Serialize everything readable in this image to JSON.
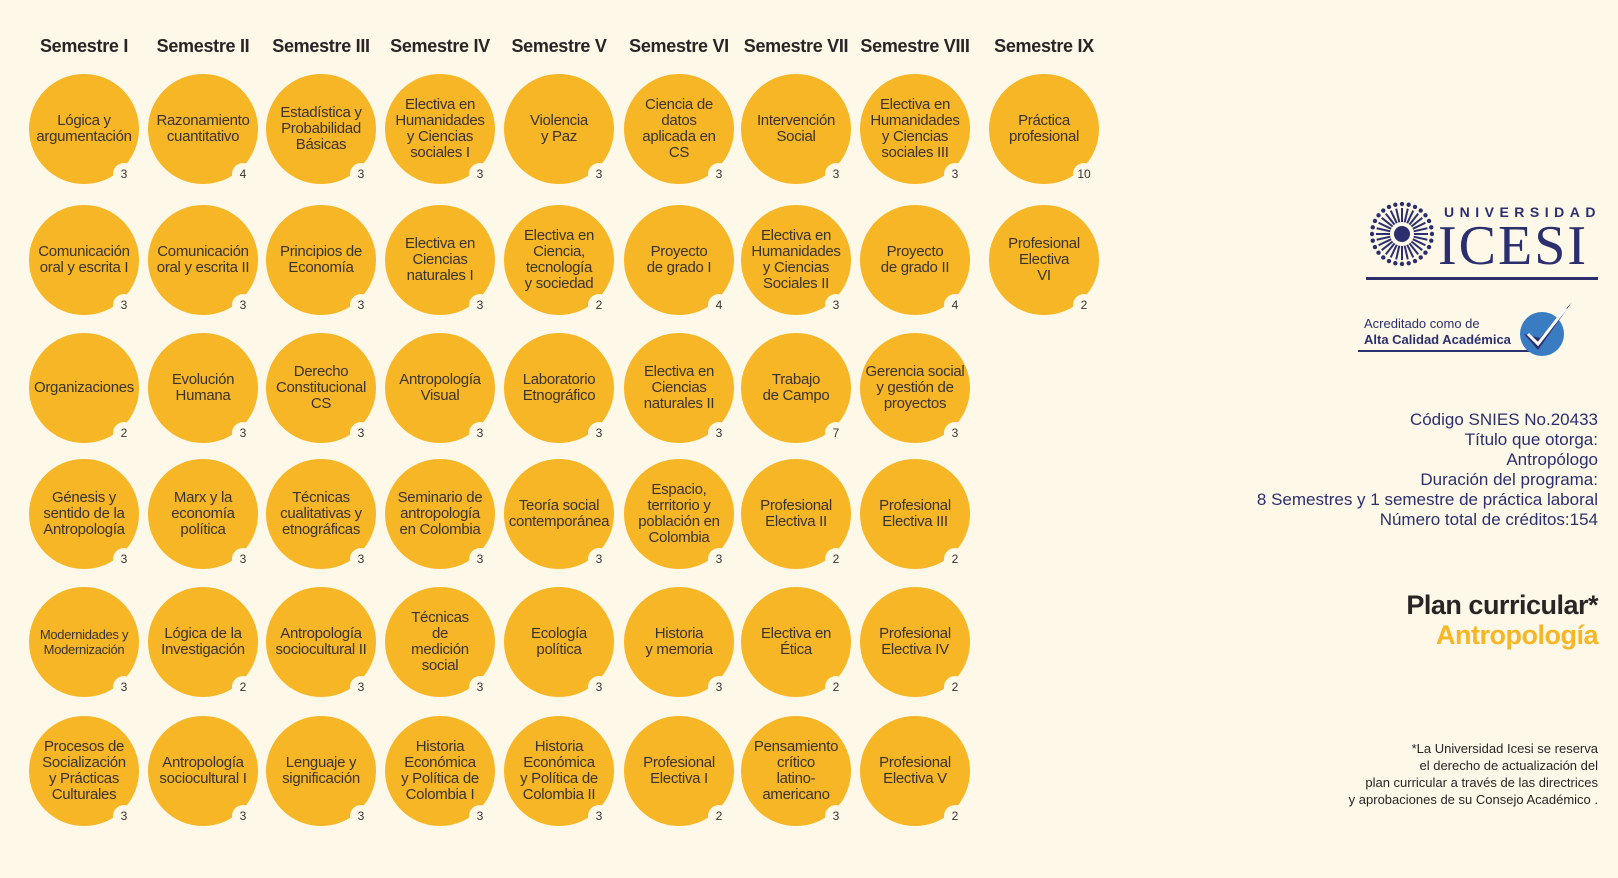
{
  "semesters": [
    {
      "label": "Semestre I",
      "courses": [
        {
          "name": "Lógica y\nargumentación",
          "credits": "3"
        },
        {
          "name": "Comunicación\noral y escrita I",
          "credits": "3"
        },
        {
          "name": "Organizaciones",
          "credits": "2"
        },
        {
          "name": "Génesis y\nsentido de la\nAntropología",
          "credits": "3"
        },
        {
          "name": "Modernidades y\nModernización",
          "credits": "3",
          "small": true
        },
        {
          "name": "Procesos de\nSocialización\ny Prácticas\nCulturales",
          "credits": "3"
        }
      ]
    },
    {
      "label": "Semestre II",
      "courses": [
        {
          "name": "Razonamiento\ncuantitativo",
          "credits": "4"
        },
        {
          "name": "Comunicación\noral y escrita II",
          "credits": "3"
        },
        {
          "name": "Evolución\nHumana",
          "credits": "3"
        },
        {
          "name": "Marx y la\neconomía\npolítica",
          "credits": "3"
        },
        {
          "name": "Lógica de la\nInvestigación",
          "credits": "2"
        },
        {
          "name": "Antropología\nsociocultural I",
          "credits": "3"
        }
      ]
    },
    {
      "label": "Semestre III",
      "courses": [
        {
          "name": "Estadística y\nProbabilidad\nBásicas",
          "credits": "3"
        },
        {
          "name": "Principios de\nEconomía",
          "credits": "3"
        },
        {
          "name": "Derecho\nConstitucional\nCS",
          "credits": "3"
        },
        {
          "name": "Técnicas\ncualitativas y\netnográficas",
          "credits": "3"
        },
        {
          "name": "Antropología\nsociocultural II",
          "credits": "3"
        },
        {
          "name": "Lenguaje y\nsignificación",
          "credits": "3"
        }
      ]
    },
    {
      "label": "Semestre IV",
      "courses": [
        {
          "name": "Electiva en\nHumanidades\ny Ciencias\nsociales I",
          "credits": "3"
        },
        {
          "name": "Electiva en\nCiencias\nnaturales I",
          "credits": "3"
        },
        {
          "name": "Antropología\nVisual",
          "credits": "3"
        },
        {
          "name": "Seminario de\nantropología\nen Colombia",
          "credits": "3"
        },
        {
          "name": "Técnicas\nde\nmedición\nsocial",
          "credits": "3"
        },
        {
          "name": "Historia\nEconómica\ny Política de\nColombia I",
          "credits": "3"
        }
      ]
    },
    {
      "label": "Semestre V",
      "courses": [
        {
          "name": "Violencia\ny Paz",
          "credits": "3"
        },
        {
          "name": "Electiva en\nCiencia,\ntecnología\ny sociedad",
          "credits": "2"
        },
        {
          "name": "Laboratorio\nEtnográfico",
          "credits": "3"
        },
        {
          "name": "Teoría social\ncontemporánea",
          "credits": "3"
        },
        {
          "name": "Ecología\npolítica",
          "credits": "3"
        },
        {
          "name": "Historia\nEconómica\ny Política de\nColombia II",
          "credits": "3"
        }
      ]
    },
    {
      "label": "Semestre VI",
      "courses": [
        {
          "name": "Ciencia de\ndatos\naplicada en\nCS",
          "credits": "3"
        },
        {
          "name": "Proyecto\nde grado I",
          "credits": "4"
        },
        {
          "name": "Electiva en\nCiencias\nnaturales II",
          "credits": "3"
        },
        {
          "name": "Espacio,\nterritorio y\npoblación en\nColombia",
          "credits": "3"
        },
        {
          "name": "Historia\ny memoria",
          "credits": "3"
        },
        {
          "name": "Profesional\nElectiva I",
          "credits": "2"
        }
      ]
    },
    {
      "label": "Semestre VII",
      "courses": [
        {
          "name": "Intervención\nSocial",
          "credits": "3"
        },
        {
          "name": "Electiva  en\nHumanidades\ny Ciencias\nSociales II",
          "credits": "3"
        },
        {
          "name": "Trabajo\nde Campo",
          "credits": "7"
        },
        {
          "name": "Profesional\nElectiva II",
          "credits": "2"
        },
        {
          "name": "Electiva  en\nÉtica",
          "credits": "2"
        },
        {
          "name": "Pensamiento\ncrítico\nlatino-\namericano",
          "credits": "3"
        }
      ]
    },
    {
      "label": "Semestre VIII",
      "courses": [
        {
          "name": "Electiva en\nHumanidades\ny Ciencias\nsociales III",
          "credits": "3"
        },
        {
          "name": "Proyecto\nde grado II",
          "credits": "4"
        },
        {
          "name": "Gerencia social\ny gestión de\nproyectos",
          "credits": "3"
        },
        {
          "name": "Profesional\nElectiva III",
          "credits": "2"
        },
        {
          "name": "Profesional\nElectiva IV",
          "credits": "2"
        },
        {
          "name": "Profesional\nElectiva V",
          "credits": "2"
        }
      ]
    },
    {
      "label": "Semestre IX",
      "courses": [
        {
          "name": "Práctica\nprofesional",
          "credits": "10"
        },
        {
          "name": "Profesional\nElectiva\nVI",
          "credits": "2"
        }
      ]
    }
  ],
  "logo": {
    "top": "UNIVERSIDAD",
    "main": "ICESI"
  },
  "accreditation": {
    "line1": "Acreditado como de",
    "line2": "Alta Calidad Académica"
  },
  "info": [
    "Código SNIES No.20433",
    "Título que otorga:",
    "Antropólogo",
    "Duración del programa:",
    "8 Semestres y 1 semestre de práctica laboral",
    "Número total de créditos:154"
  ],
  "plan": {
    "title": "Plan curricular*",
    "subtitle": "Antropología"
  },
  "note": "*La Universidad Icesi se reserva\nel derecho de actualización del\nplan curricular a través de las directrices\ny aprobaciones de su Consejo Académico .",
  "colors": {
    "accent": "#f6b626",
    "navy": "#2c2f6e",
    "background": "#fdf8e8"
  }
}
